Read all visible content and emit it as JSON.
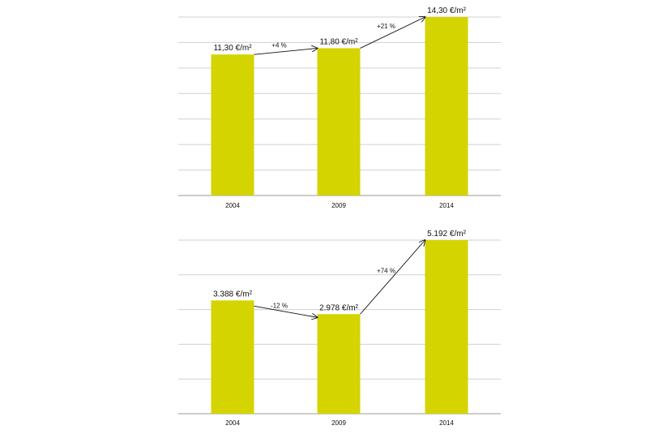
{
  "chart_data": [
    {
      "type": "bar",
      "title": "",
      "xlabel": "",
      "ylabel": "",
      "categories": [
        "2004",
        "2009",
        "2014"
      ],
      "values": [
        11.3,
        11.8,
        14.3
      ],
      "data_labels": [
        "11,30 €/m²",
        "11,80 €/m²",
        "14,30 €/m²"
      ],
      "annotations": [
        {
          "from": 0,
          "to": 1,
          "label": "+4 %"
        },
        {
          "from": 1,
          "to": 2,
          "label": "+21 %"
        }
      ],
      "ylim": [
        0,
        14.3
      ],
      "gridlines": 7,
      "grid": true,
      "bar_color": "#d4d400"
    },
    {
      "type": "bar",
      "title": "",
      "xlabel": "",
      "ylabel": "",
      "categories": [
        "2004",
        "2009",
        "2014"
      ],
      "values": [
        3388,
        2978,
        5192
      ],
      "data_labels": [
        "3.388 €/m²",
        "2.978 €/m²",
        "5.192 €/m²"
      ],
      "annotations": [
        {
          "from": 0,
          "to": 1,
          "label": "-12 %"
        },
        {
          "from": 1,
          "to": 2,
          "label": "+74 %"
        }
      ],
      "ylim": [
        0,
        5192
      ],
      "gridlines": 5,
      "grid": true,
      "bar_color": "#d4d400"
    }
  ]
}
